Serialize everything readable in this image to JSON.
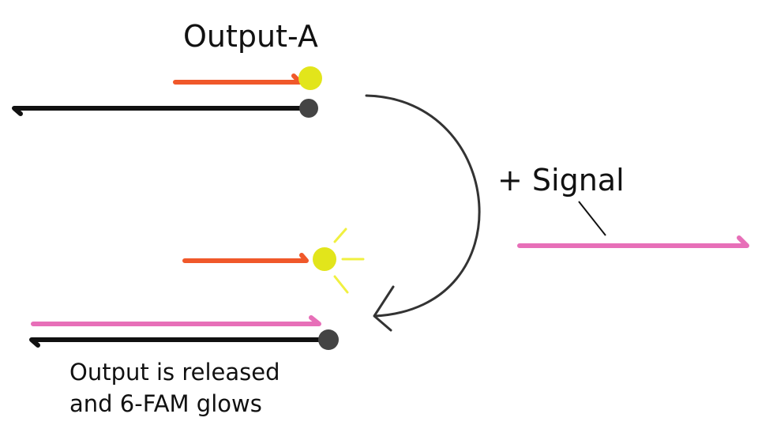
{
  "diagram": {
    "output_label": "Output-A",
    "signal_label": "+ Signal",
    "caption_lines": [
      "Output is released",
      "and 6-FAM glows"
    ],
    "colors": {
      "template_strand": "#111111",
      "output_strand": "#f0582a",
      "signal_strand": "#e76fb8",
      "fluorophore": "#e2e51b",
      "quencher": "#444444",
      "arrow": "#333333"
    }
  }
}
